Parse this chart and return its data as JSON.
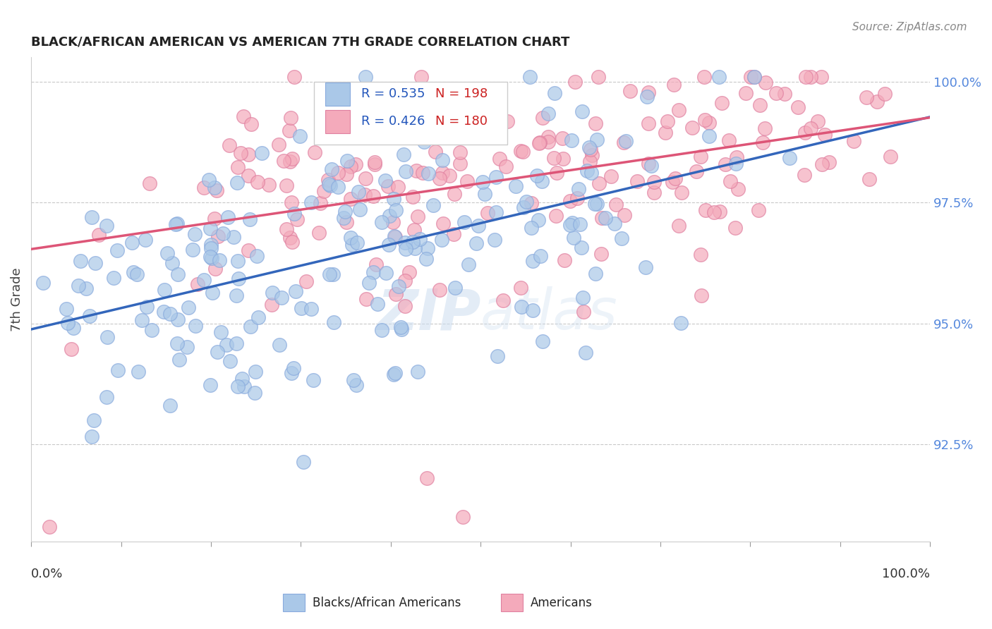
{
  "title": "BLACK/AFRICAN AMERICAN VS AMERICAN 7TH GRADE CORRELATION CHART",
  "source": "Source: ZipAtlas.com",
  "ylabel": "7th Grade",
  "ylabel_right_labels": [
    "100.0%",
    "97.5%",
    "95.0%",
    "92.5%"
  ],
  "ylabel_right_values": [
    1.0,
    0.975,
    0.95,
    0.925
  ],
  "legend_blue_r": "R = 0.535",
  "legend_blue_n": "N = 198",
  "legend_pink_r": "R = 0.426",
  "legend_pink_n": "N = 180",
  "blue_color": "#aac8e8",
  "pink_color": "#f4aabb",
  "blue_edge_color": "#88aadd",
  "pink_edge_color": "#e080a0",
  "blue_line_color": "#3366bb",
  "pink_line_color": "#dd5577",
  "watermark_color": "#ccddf0",
  "background_color": "#ffffff",
  "xmin": 0.0,
  "xmax": 1.0,
  "ymin": 0.905,
  "ymax": 1.005,
  "blue_r": 0.535,
  "pink_r": 0.426,
  "blue_n": 198,
  "pink_n": 180
}
